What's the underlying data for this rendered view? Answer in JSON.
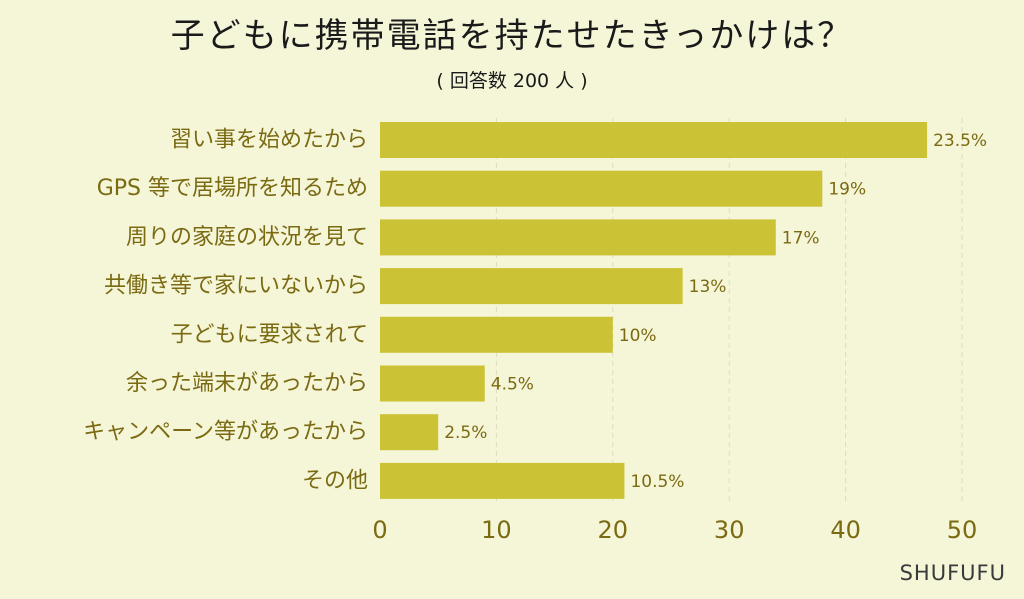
{
  "title": "子どもに携帯電話を持たせたきっかけは？",
  "subtitle": "( 回答数 200 人 )",
  "brand": "SHUFUFU",
  "colors": {
    "bar": "#cbc335",
    "background": "#f5f5d8",
    "label": "#7a6a12",
    "grid": "#dddcc0"
  },
  "chart_data": {
    "type": "bar",
    "orientation": "horizontal",
    "categories": [
      "習い事を始めたから",
      "GPS 等で居場所を知るため",
      "周りの家庭の状況を見て",
      "共働き等で家にいないから",
      "子どもに要求されて",
      "余った端末があったから",
      "キャンペーン等があったから",
      "その他"
    ],
    "values": [
      47,
      38,
      34,
      26,
      20,
      9,
      5,
      21
    ],
    "value_labels": [
      "23.5%",
      "19%",
      "17%",
      "13%",
      "10%",
      "4.5%",
      "2.5%",
      "10.5%"
    ],
    "xlim": [
      0,
      50
    ],
    "xticks": [
      0,
      10,
      20,
      30,
      40,
      50
    ],
    "grid": true
  }
}
